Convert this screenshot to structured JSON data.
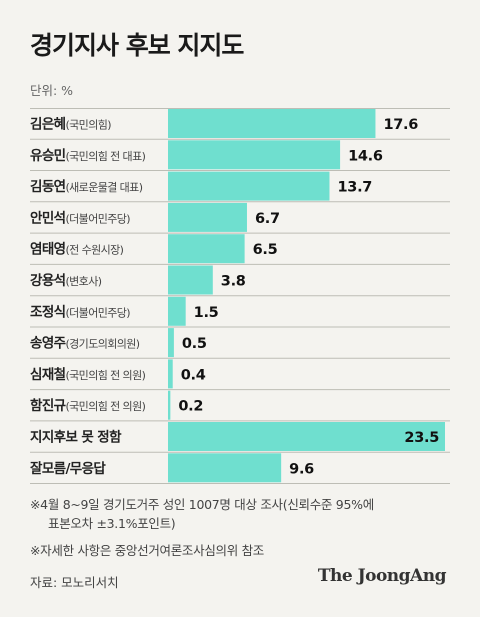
{
  "title": "경기지사 후보 지지도",
  "unit": "단위: %",
  "chart_data": {
    "type": "bar",
    "orientation": "horizontal",
    "categories": [
      {
        "name": "김은혜",
        "detail": "(국민의힘)"
      },
      {
        "name": "유승민",
        "detail": "(국민의힘 전 대표)"
      },
      {
        "name": "김동연",
        "detail": "(새로운물결 대표)"
      },
      {
        "name": "안민석",
        "detail": "(더불어민주당)"
      },
      {
        "name": "염태영",
        "detail": "(전 수원시장)"
      },
      {
        "name": "강용석",
        "detail": "(변호사)"
      },
      {
        "name": "조정식",
        "detail": "(더불어민주당)"
      },
      {
        "name": "송영주",
        "detail": "(경기도의회의원)"
      },
      {
        "name": "심재철",
        "detail": "(국민의힘 전 의원)"
      },
      {
        "name": "함진규",
        "detail": "(국민의힘 전 의원)"
      },
      {
        "name": "지지후보 못 정함",
        "detail": ""
      },
      {
        "name": "잘모름/무응답",
        "detail": ""
      }
    ],
    "values": [
      17.6,
      14.6,
      13.7,
      6.7,
      6.5,
      3.8,
      1.5,
      0.5,
      0.4,
      0.2,
      23.5,
      9.6
    ],
    "value_labels": [
      "17.6",
      "14.6",
      "13.7",
      "6.7",
      "6.5",
      "3.8",
      "1.5",
      "0.5",
      "0.4",
      "0.2",
      "23.5",
      "9.6"
    ],
    "xlim": [
      0,
      23.5
    ],
    "colors": {
      "bar": "#6fdfcf",
      "divider": "#bdbdb5"
    }
  },
  "notes": {
    "line1": "※4월 8~9일 경기도거주 성인 1007명 대상 조사(신뢰수준 95%에",
    "line2": "표본오차 ±3.1%포인트)",
    "line3": "※자세한 사항은 중앙선거여론조사심의위 참조"
  },
  "source": "자료: 모노리서치",
  "brand": "The JoongAng"
}
